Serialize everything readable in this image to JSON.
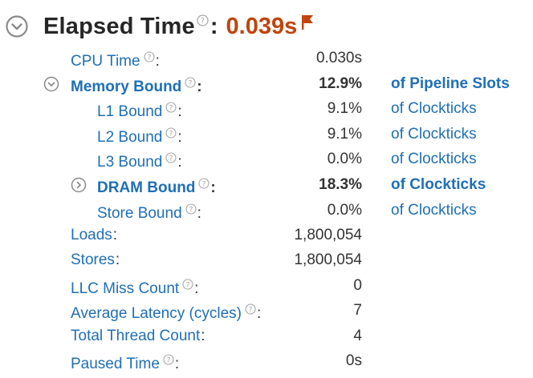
{
  "header": {
    "title": "Elapsed Time",
    "colon": ":",
    "value": "0.039s",
    "toggle_icon": "chevron-down-circle-icon",
    "flag_icon": "flag-icon",
    "value_color": "#c0440c"
  },
  "rows": [
    {
      "label": "CPU Time",
      "colon": ":",
      "value": "0.030s",
      "unit": ""
    },
    {
      "label": "Memory Bound",
      "colon": ":",
      "value": "12.9%",
      "unit": "of Pipeline Slots"
    },
    {
      "label": "L1 Bound",
      "colon": ":",
      "value": "9.1%",
      "unit": "of Clockticks"
    },
    {
      "label": "L2 Bound",
      "colon": ":",
      "value": "9.1%",
      "unit": "of Clockticks"
    },
    {
      "label": "L3 Bound",
      "colon": ":",
      "value": "0.0%",
      "unit": "of Clockticks"
    },
    {
      "label": "DRAM Bound",
      "colon": ":",
      "value": "18.3%",
      "unit": "of Clockticks"
    },
    {
      "label": "Store Bound",
      "colon": ":",
      "value": "0.0%",
      "unit": "of Clockticks"
    },
    {
      "label": "Loads",
      "colon": ":",
      "value": "1,800,054",
      "unit": ""
    },
    {
      "label": "Stores",
      "colon": ":",
      "value": "1,800,054",
      "unit": ""
    },
    {
      "label": "LLC Miss Count",
      "colon": ":",
      "value": "0",
      "unit": ""
    },
    {
      "label": "Average Latency (cycles)",
      "colon": ":",
      "value": "7",
      "unit": ""
    },
    {
      "label": "Total Thread Count",
      "colon": ":",
      "value": "4",
      "unit": ""
    },
    {
      "label": "Paused Time",
      "colon": ":",
      "value": "0s",
      "unit": ""
    }
  ],
  "colors": {
    "link": "#1f6fb5",
    "text": "#333333",
    "accent": "#c0440c"
  }
}
